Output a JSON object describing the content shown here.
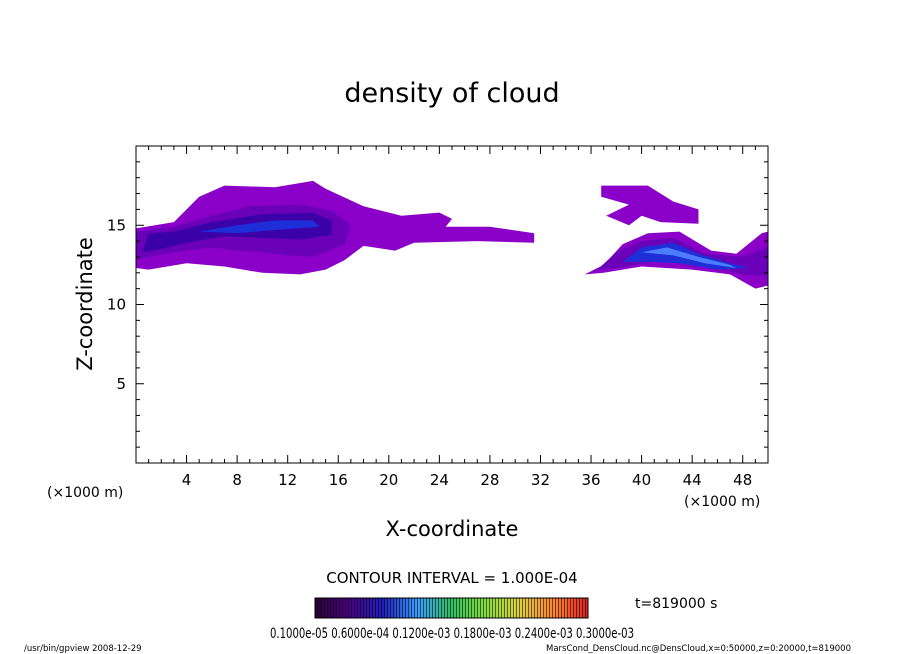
{
  "chart_data": {
    "type": "heatmap",
    "title": "density of cloud",
    "xlabel": "X-coordinate",
    "ylabel": "Z-coordinate",
    "x_unit": "(×1000 m)",
    "y_unit": "(×1000 m)",
    "xlim": [
      0,
      50
    ],
    "ylim": [
      0,
      20
    ],
    "x_ticks": [
      4,
      8,
      12,
      16,
      20,
      24,
      28,
      32,
      36,
      40,
      44,
      48
    ],
    "y_ticks": [
      5,
      10,
      15
    ],
    "x_tick_labels": [
      "4",
      "8",
      "12",
      "16",
      "20",
      "24",
      "28",
      "32",
      "36",
      "40",
      "44",
      "48"
    ],
    "y_tick_labels": [
      "5",
      "10",
      "15"
    ],
    "contour_interval": "CONTOUR INTERVAL = 1.000E-04",
    "colorbar_labels": "0.1000e-05 0.6000e-04 0.1200e-03 0.1800e-03 0.2400e-03 0.3000e-03",
    "colorbar_max_label": "0.3000e-03",
    "time_label": "t=819000 s",
    "footer_left": "/usr/bin/gpview   2008-12-29",
    "footer_right": "MarsCond_DensCloud.nc@DensCloud,x=0:50000,z=0:20000,t=819000",
    "colors": {
      "purple": "#8b00c8",
      "violet": "#6a00b8",
      "indigo": "#3c00a8",
      "blue": "#1f2fd8",
      "light_blue": "#4d7dff"
    },
    "regions": [
      {
        "level": "purple",
        "points": [
          [
            0,
            12.3
          ],
          [
            0,
            14.8
          ],
          [
            3,
            15.2
          ],
          [
            5,
            16.8
          ],
          [
            7,
            17.5
          ],
          [
            11,
            17.4
          ],
          [
            14,
            17.8
          ],
          [
            15,
            17.3
          ],
          [
            18,
            16.2
          ],
          [
            21,
            15.6
          ],
          [
            24,
            15.8
          ],
          [
            25,
            15.4
          ],
          [
            24.5,
            14.9
          ],
          [
            28,
            14.9
          ],
          [
            31.5,
            14.5
          ],
          [
            31.5,
            13.9
          ],
          [
            27,
            14.0
          ],
          [
            22,
            13.9
          ],
          [
            20.5,
            13.4
          ],
          [
            18,
            13.7
          ],
          [
            16.5,
            12.8
          ],
          [
            15,
            12.2
          ],
          [
            13,
            11.9
          ],
          [
            10,
            12.0
          ],
          [
            7,
            12.4
          ],
          [
            4,
            12.6
          ],
          [
            1,
            12.2
          ]
        ]
      },
      {
        "level": "violet",
        "points": [
          [
            0,
            12.8
          ],
          [
            0,
            14.6
          ],
          [
            3,
            14.9
          ],
          [
            6,
            15.6
          ],
          [
            9,
            16.2
          ],
          [
            13,
            16.3
          ],
          [
            15.5,
            15.9
          ],
          [
            17,
            15.0
          ],
          [
            16.5,
            13.8
          ],
          [
            14,
            13.0
          ],
          [
            12,
            13.1
          ],
          [
            10,
            13.3
          ],
          [
            8,
            13.4
          ],
          [
            6,
            13.6
          ],
          [
            3,
            13.3
          ],
          [
            1,
            13.0
          ]
        ]
      },
      {
        "level": "indigo",
        "points": [
          [
            0.5,
            13.3
          ],
          [
            1,
            14.5
          ],
          [
            3,
            14.6
          ],
          [
            6,
            15.2
          ],
          [
            10,
            15.7
          ],
          [
            14,
            15.8
          ],
          [
            15.5,
            15.3
          ],
          [
            15.5,
            14.4
          ],
          [
            13,
            14.1
          ],
          [
            10,
            14.2
          ],
          [
            7,
            14.3
          ],
          [
            4,
            13.9
          ],
          [
            2,
            13.5
          ]
        ]
      },
      {
        "level": "blue",
        "points": [
          [
            5,
            14.6
          ],
          [
            8,
            15.0
          ],
          [
            11,
            15.3
          ],
          [
            14,
            15.3
          ],
          [
            14.5,
            14.9
          ],
          [
            11,
            14.7
          ],
          [
            8,
            14.5
          ]
        ]
      },
      {
        "level": "purple",
        "points": [
          [
            35.5,
            11.9
          ],
          [
            37,
            12.5
          ],
          [
            38.5,
            13.8
          ],
          [
            40.5,
            14.5
          ],
          [
            43,
            14.6
          ],
          [
            45.5,
            13.4
          ],
          [
            47.5,
            13.2
          ],
          [
            49.5,
            14.5
          ],
          [
            50,
            14.6
          ],
          [
            50,
            11.2
          ],
          [
            49,
            11.0
          ],
          [
            47,
            11.9
          ],
          [
            44,
            12.2
          ],
          [
            40,
            12.4
          ],
          [
            37,
            12.0
          ]
        ]
      },
      {
        "level": "purple",
        "points": [
          [
            36.8,
            17.5
          ],
          [
            40.5,
            17.5
          ],
          [
            42.5,
            16.5
          ],
          [
            44.5,
            16.0
          ],
          [
            44.5,
            15.1
          ],
          [
            41.5,
            15.2
          ],
          [
            40,
            15.6
          ],
          [
            39,
            15.0
          ],
          [
            37.2,
            15.6
          ],
          [
            39,
            16.3
          ],
          [
            36.8,
            16.8
          ]
        ]
      },
      {
        "level": "violet",
        "points": [
          [
            36.5,
            12.2
          ],
          [
            38,
            13.3
          ],
          [
            40,
            14.0
          ],
          [
            42.5,
            14.2
          ],
          [
            45,
            13.2
          ],
          [
            48,
            13.0
          ],
          [
            50,
            13.6
          ],
          [
            50,
            11.8
          ],
          [
            48,
            11.9
          ],
          [
            45,
            12.5
          ],
          [
            41,
            12.7
          ],
          [
            38,
            12.3
          ]
        ]
      },
      {
        "level": "blue",
        "points": [
          [
            38.5,
            12.7
          ],
          [
            40,
            13.6
          ],
          [
            42.5,
            13.9
          ],
          [
            44.5,
            13.2
          ],
          [
            47,
            12.6
          ],
          [
            48.5,
            12.3
          ],
          [
            46,
            12.2
          ],
          [
            43,
            12.6
          ],
          [
            40.5,
            12.7
          ]
        ]
      },
      {
        "level": "light_blue",
        "points": [
          [
            40,
            13.3
          ],
          [
            42,
            13.6
          ],
          [
            44.5,
            13.0
          ],
          [
            47,
            12.5
          ],
          [
            47.5,
            12.3
          ],
          [
            45,
            12.6
          ],
          [
            42.5,
            13.1
          ]
        ]
      }
    ]
  }
}
